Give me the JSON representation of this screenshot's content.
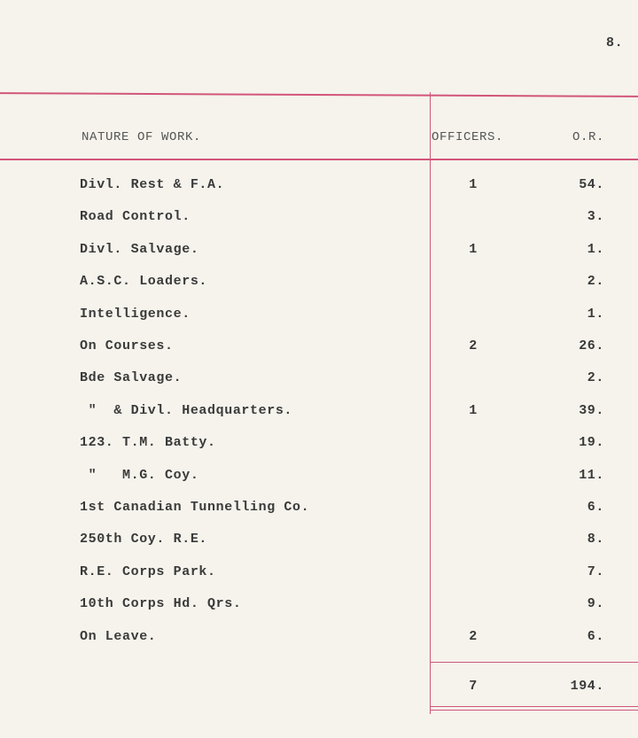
{
  "page_number": "8.",
  "table": {
    "headers": {
      "work": "NATURE OF WORK.",
      "officers": "OFFICERS.",
      "or": "O.R."
    },
    "rows": [
      {
        "work": "Divl. Rest & F.A.",
        "officers": "1",
        "or": "54."
      },
      {
        "work": "Road Control.",
        "officers": "",
        "or": "3."
      },
      {
        "work": "Divl. Salvage.",
        "officers": "1",
        "or": "1."
      },
      {
        "work": "A.S.C. Loaders.",
        "officers": "",
        "or": "2."
      },
      {
        "work": "Intelligence.",
        "officers": "",
        "or": "1."
      },
      {
        "work": "On Courses.",
        "officers": "2",
        "or": "26."
      },
      {
        "work": "Bde Salvage.",
        "officers": "",
        "or": "2."
      },
      {
        "work": " \"  & Divl. Headquarters.",
        "officers": "1",
        "or": "39."
      },
      {
        "work": "123. T.M. Batty.",
        "officers": "",
        "or": "19."
      },
      {
        "work": " \"   M.G. Coy.",
        "officers": "",
        "or": "11."
      },
      {
        "work": "1st Canadian Tunnelling Co.",
        "officers": "",
        "or": "6."
      },
      {
        "work": "250th Coy. R.E.",
        "officers": "",
        "or": "8."
      },
      {
        "work": "R.E. Corps Park.",
        "officers": "",
        "or": "7."
      },
      {
        "work": "10th Corps Hd. Qrs.",
        "officers": "",
        "or": "9."
      },
      {
        "work": "On Leave.",
        "officers": "2",
        "or": "6."
      }
    ],
    "totals": {
      "officers": "7",
      "or": "194."
    }
  },
  "colors": {
    "paper": "#f5f3ec",
    "rule": "#d2557a",
    "ink": "#3a3a3a"
  }
}
